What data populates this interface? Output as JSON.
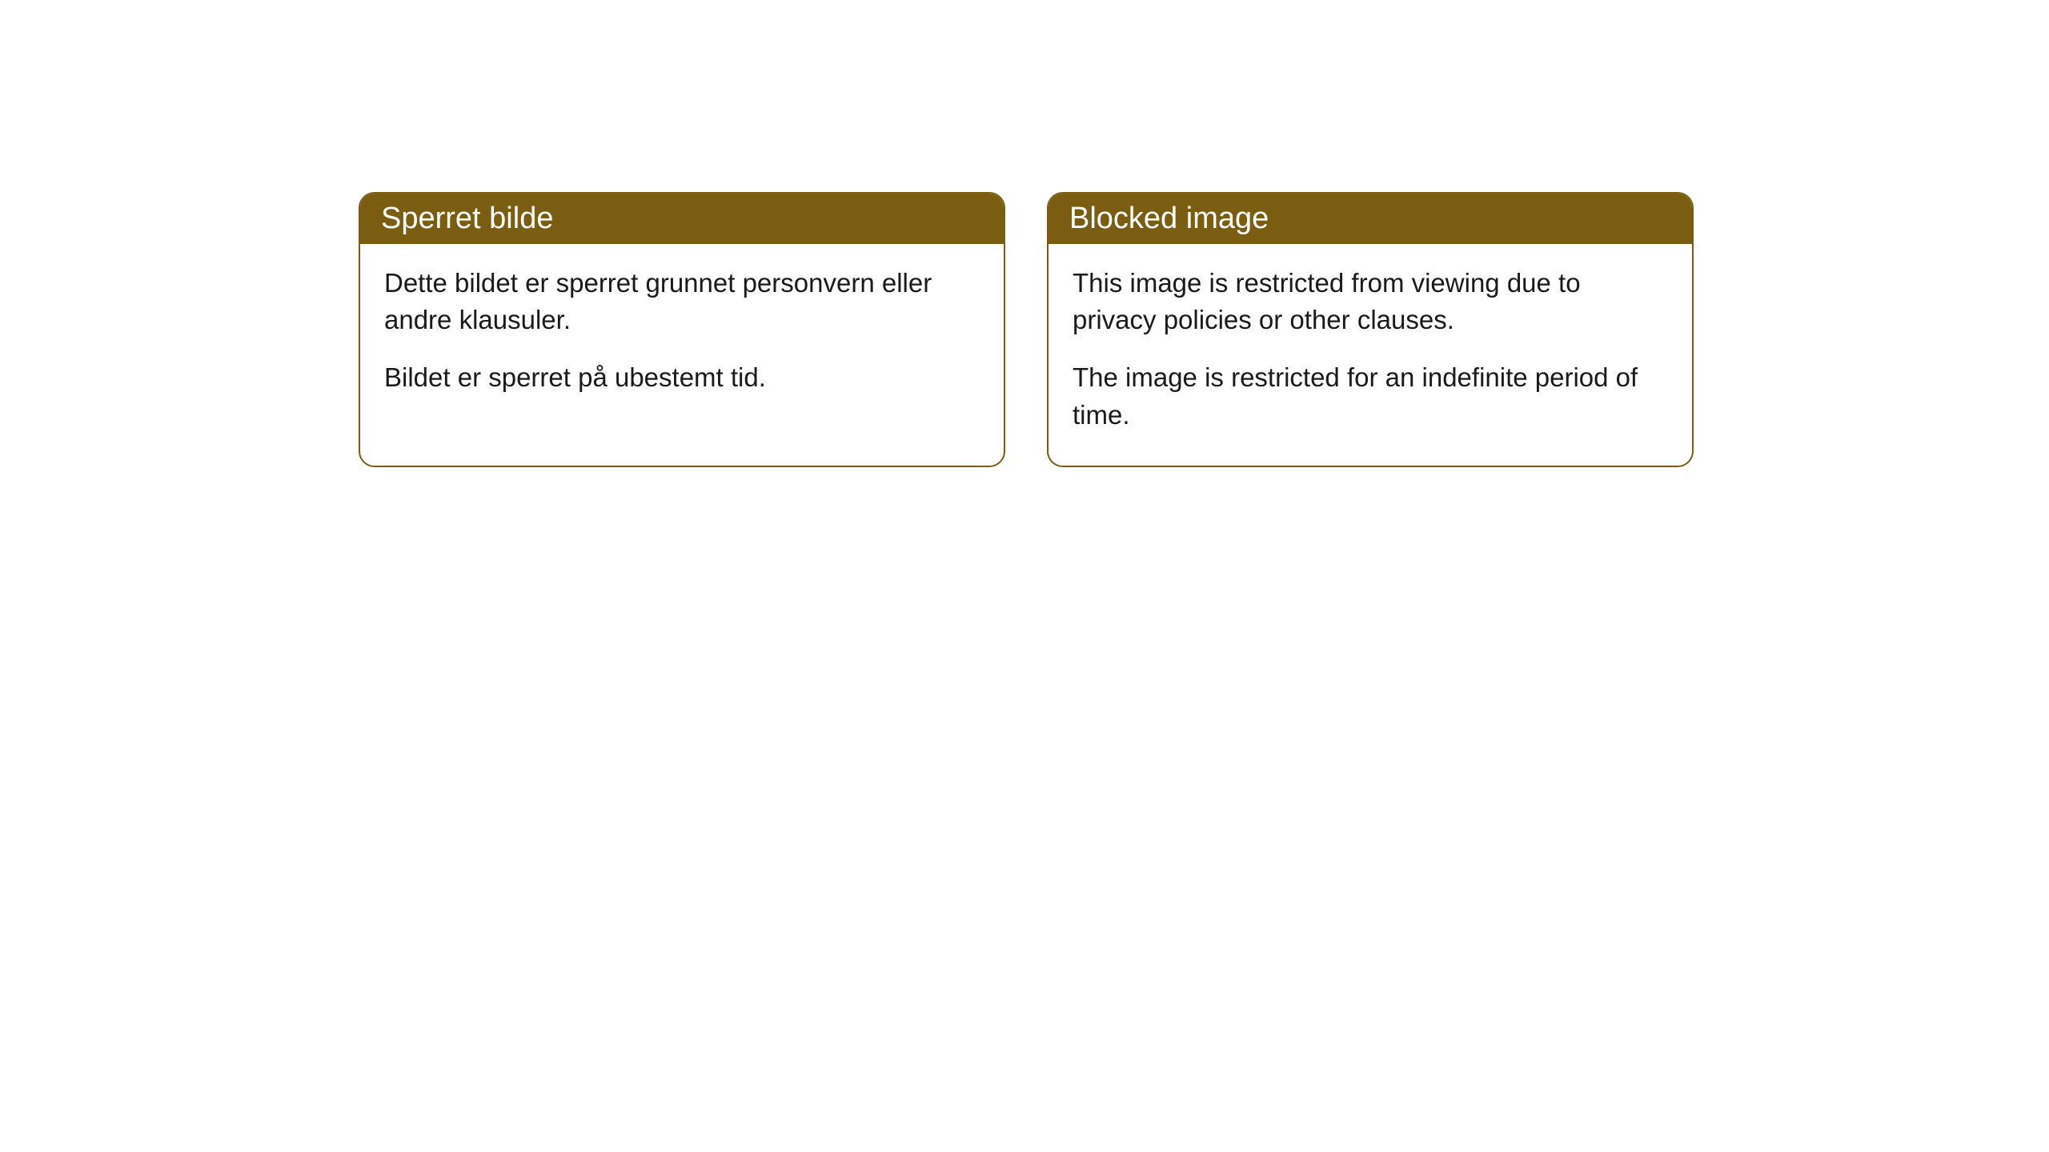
{
  "cards": [
    {
      "title": "Sperret bilde",
      "paragraph1": "Dette bildet er sperret grunnet personvern eller andre klausuler.",
      "paragraph2": "Bildet er sperret på ubestemt tid."
    },
    {
      "title": "Blocked image",
      "paragraph1": "This image is restricted from viewing due to privacy policies or other clauses.",
      "paragraph2": "The image is restricted for an indefinite period of time."
    }
  ],
  "styling": {
    "header_background": "#7a5d11",
    "header_text_color": "#ffffff",
    "border_color": "#7a5d11",
    "body_background": "#ffffff",
    "body_text_color": "#1a1a1a",
    "border_radius": 20,
    "title_fontsize": 38,
    "body_fontsize": 33
  }
}
